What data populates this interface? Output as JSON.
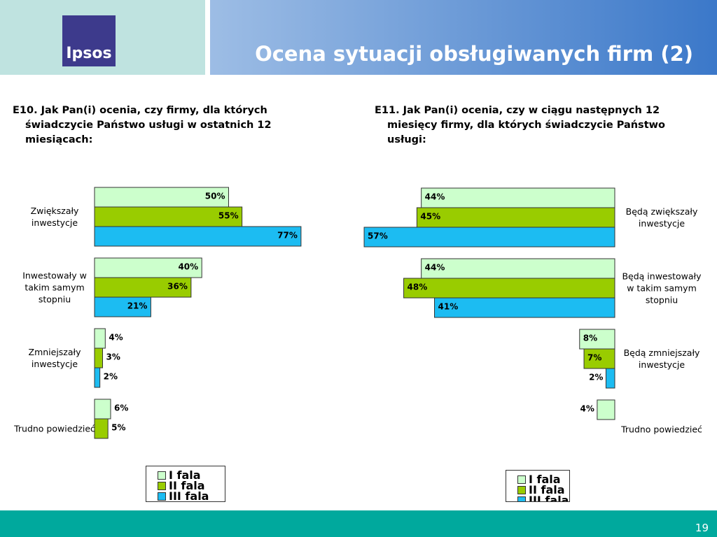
{
  "title": "Ocena sytuacji obsługiwanych firm (2)",
  "logo": "Ipsos",
  "page_number": "19",
  "chart_data": [
    {
      "type": "bar",
      "orientation": "horizontal",
      "direction": "right",
      "title": "E10. Jak Pan(i) ocenia, czy firmy, dla których świadczycie Państwo usługi w ostatnich 12 miesiącach:",
      "categories": [
        "Zwiększały inwestycje",
        "Inwestowały w takim samym stopniu",
        "Zmniejszały inwestycje",
        "Trudno powiedzieć"
      ],
      "xlim": [
        0,
        100
      ],
      "series": [
        {
          "name": "I fala",
          "color": "#ccffcc",
          "values": [
            50,
            40,
            4,
            6
          ],
          "value_labels": [
            "50%",
            "40%",
            "4%",
            "6%"
          ]
        },
        {
          "name": "II fala",
          "color": "#99cc00",
          "values": [
            55,
            36,
            3,
            5
          ],
          "value_labels": [
            "55%",
            "36%",
            "3%",
            "5%"
          ]
        },
        {
          "name": "III fala",
          "color": "#1cbcf2",
          "values": [
            77,
            21,
            2,
            null
          ],
          "value_labels": [
            "77%",
            "21%",
            "2%",
            null
          ]
        }
      ]
    },
    {
      "type": "bar",
      "orientation": "horizontal",
      "direction": "left",
      "title": "E11. Jak Pan(i) ocenia, czy w ciągu następnych 12 miesięcy firmy, dla których świadczycie Państwo usługi:",
      "categories": [
        "Będą zwiększały inwestycje",
        "Będą inwestowały w takim samym stopniu",
        "Będą zmniejszały inwestycje",
        "Trudno powiedzieć"
      ],
      "xlim": [
        0,
        100
      ],
      "series": [
        {
          "name": "I fala",
          "color": "#ccffcc",
          "values": [
            44,
            44,
            8,
            4
          ],
          "value_labels": [
            "44%",
            "44%",
            "8%",
            "4%"
          ]
        },
        {
          "name": "II fala",
          "color": "#99cc00",
          "values": [
            45,
            48,
            7,
            null
          ],
          "value_labels": [
            "45%",
            "48%",
            "7%",
            null
          ]
        },
        {
          "name": "III fala",
          "color": "#1cbcf2",
          "values": [
            57,
            41,
            2,
            null
          ],
          "value_labels": [
            "57%",
            "41%",
            "2%",
            null
          ]
        }
      ]
    }
  ]
}
